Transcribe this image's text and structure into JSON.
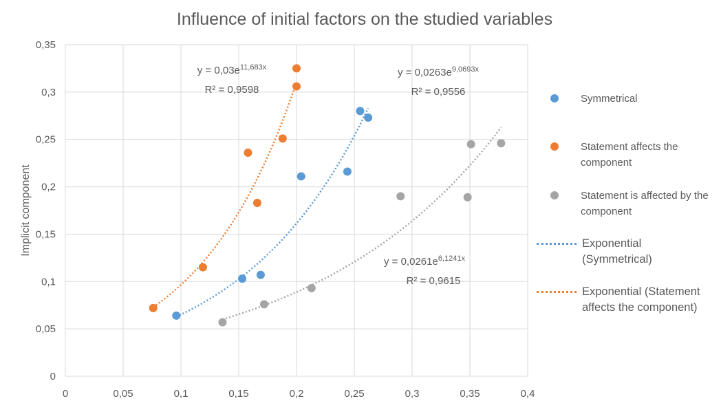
{
  "chart_data": {
    "type": "scatter",
    "title": "Influence of initial factors on the studied variables",
    "y_label": "Implicit component",
    "xlim": [
      0,
      0.4
    ],
    "ylim": [
      0,
      0.35
    ],
    "xticks": [
      0,
      {
        "value": 0.05,
        "label": "0,05"
      },
      {
        "value": 0.1,
        "label": "0,1"
      },
      {
        "value": 0.15,
        "label": "0,15"
      },
      {
        "value": 0.2,
        "label": "0,2"
      },
      {
        "value": 0.25,
        "label": "0,25"
      },
      {
        "value": 0.3,
        "label": "0,3"
      },
      {
        "value": 0.35,
        "label": "0,35"
      },
      {
        "value": 0.4,
        "label": "0,4"
      }
    ],
    "yticks": [
      0,
      {
        "value": 0.05,
        "label": "0,05"
      },
      {
        "value": 0.1,
        "label": "0,1"
      },
      {
        "value": 0.15,
        "label": "0,15"
      },
      {
        "value": 0.2,
        "label": "0,2"
      },
      {
        "value": 0.25,
        "label": "0,25"
      },
      {
        "value": 0.3,
        "label": "0,3"
      },
      {
        "value": 0.35,
        "label": "0,35"
      }
    ],
    "grid": true,
    "legend": "right",
    "series": [
      {
        "name": "Symmetrical",
        "color": "#5b9bd5",
        "x": [
          0.096,
          0.153,
          0.169,
          0.204,
          0.244,
          0.255,
          0.262
        ],
        "values": [
          0.064,
          0.103,
          0.107,
          0.211,
          0.216,
          0.28,
          0.273
        ],
        "trendline": {
          "name": "Exponential (Symmetrical)",
          "a": 0.0263,
          "b": 9.0693,
          "equation": "y = 0,0263e",
          "exponent": "9,0693x",
          "r2": "R² = 0,9556"
        }
      },
      {
        "name": "Statement affects the component",
        "color": "#ed7d31",
        "x": [
          0.076,
          0.119,
          0.158,
          0.166,
          0.188,
          0.2,
          0.2
        ],
        "values": [
          0.072,
          0.115,
          0.236,
          0.183,
          0.251,
          0.306,
          0.325
        ],
        "trendline": {
          "name": "Exponential (Statement affects the component)",
          "a": 0.03,
          "b": 11.683,
          "equation": "y = 0,03e",
          "exponent": "11,683x",
          "r2": "R² = 0,9598"
        }
      },
      {
        "name": "Statement is affected by the component",
        "color": "#a5a5a5",
        "x": [
          0.136,
          0.172,
          0.213,
          0.29,
          0.348,
          0.351,
          0.377
        ],
        "values": [
          0.057,
          0.076,
          0.093,
          0.19,
          0.189,
          0.245,
          0.246
        ],
        "trendline": {
          "a": 0.0261,
          "b": 6.1241,
          "equation": "y = 0,0261e",
          "exponent": "6,1241x",
          "r2": "R² = 0,9615"
        }
      }
    ]
  }
}
